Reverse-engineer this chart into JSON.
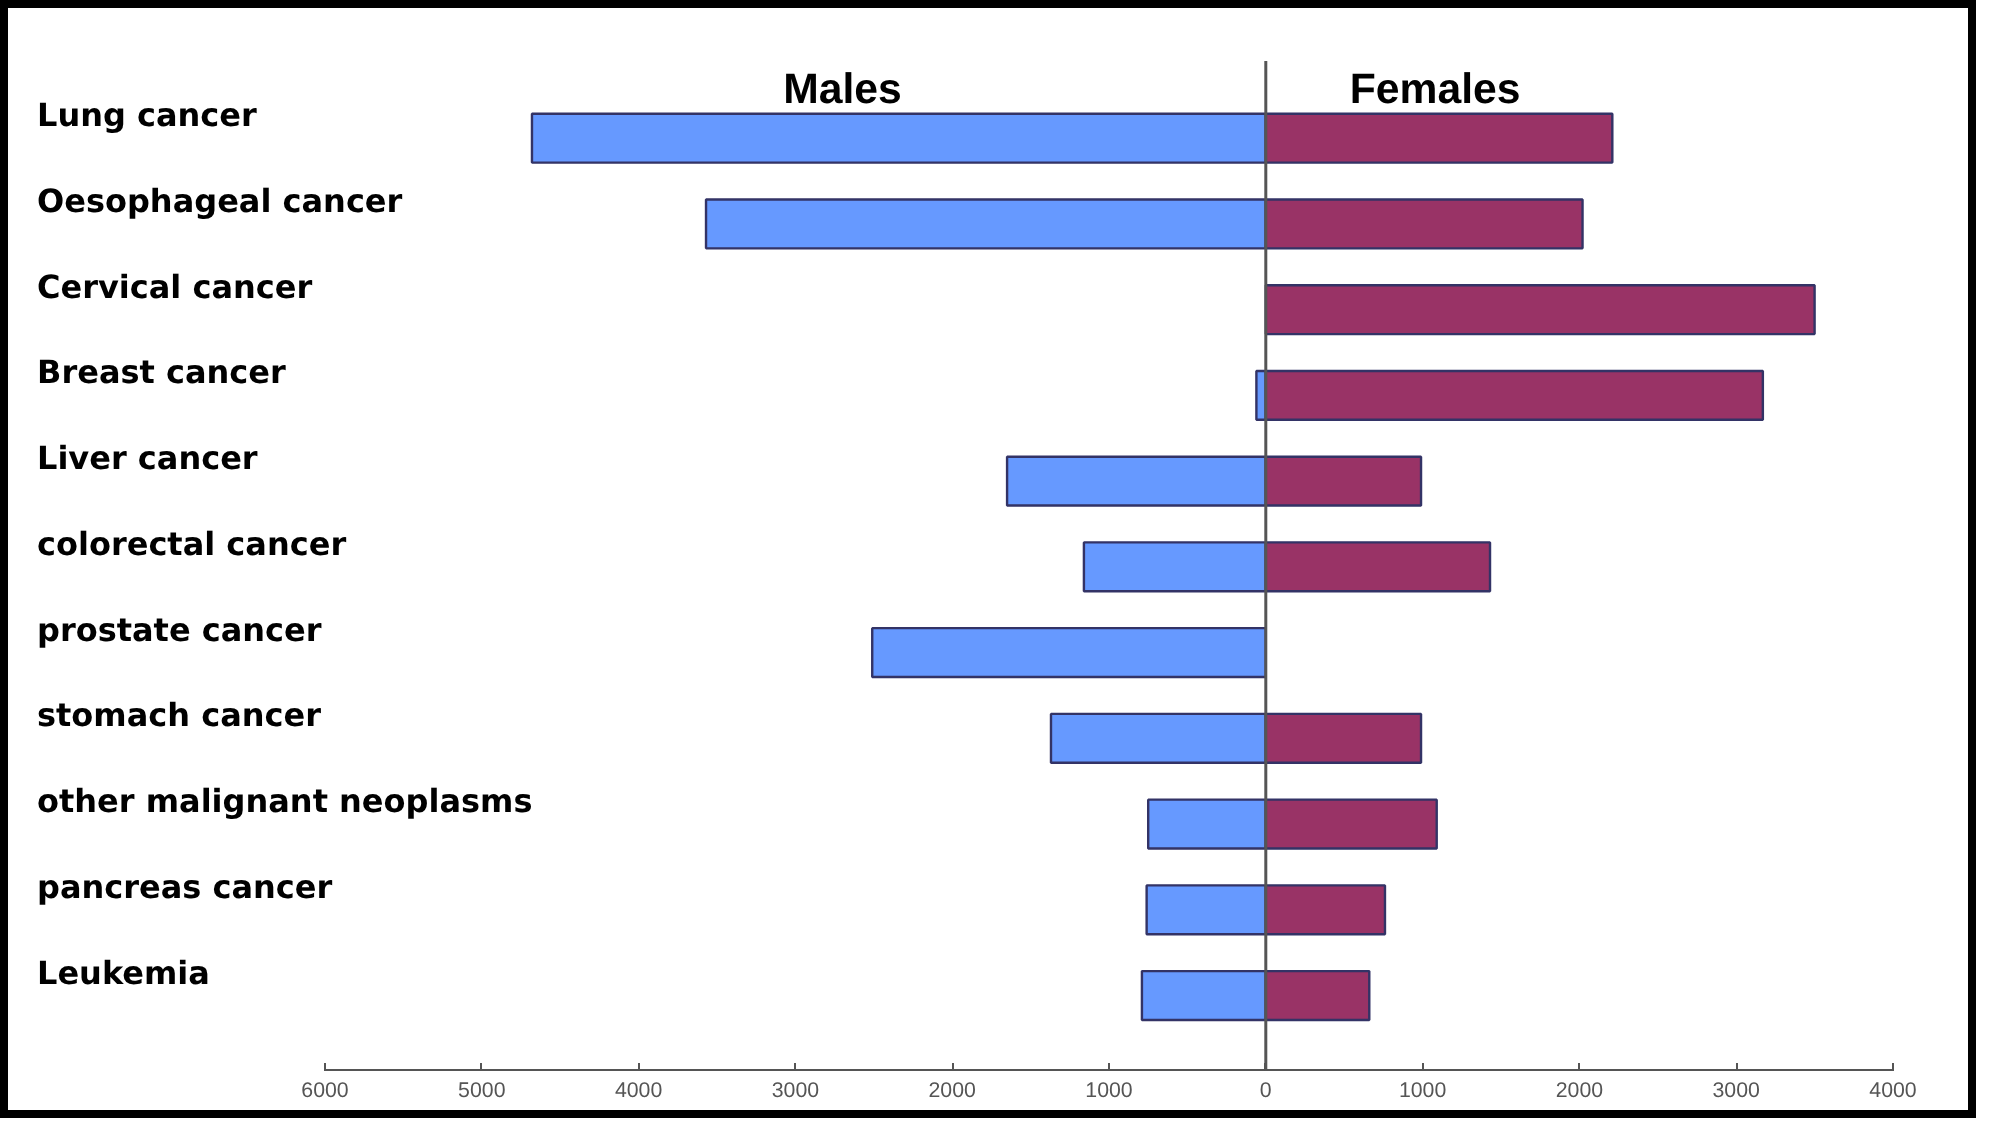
{
  "chart_data": {
    "type": "bar",
    "orientation": "horizontal",
    "stacked": true,
    "categories": [
      "Lung cancer",
      "Oesophageal cancer",
      "Cervical cancer",
      "Breast cancer",
      "Liver cancer",
      "colorectal cancer",
      "prostate cancer",
      "stomach cancer",
      "other malignant neoplasms",
      "pancreas cancer",
      "Leukemia"
    ],
    "series": [
      {
        "name": "Males",
        "color": "#6699ff",
        "values": [
          -4680,
          -3570,
          0,
          -60,
          -1650,
          -1160,
          -2510,
          -1370,
          -750,
          -760,
          -790
        ]
      },
      {
        "name": "Females",
        "color": "#993366",
        "values": [
          2210,
          2020,
          3500,
          3170,
          990,
          1430,
          0,
          990,
          1090,
          760,
          660
        ]
      }
    ],
    "xlim": [
      -6000,
      4000
    ],
    "xticks": [
      {
        "value": -6000,
        "label": "6000"
      },
      {
        "value": -5000,
        "label": "5000"
      },
      {
        "value": -4000,
        "label": "4000"
      },
      {
        "value": -3000,
        "label": "3000"
      },
      {
        "value": -2000,
        "label": "2000"
      },
      {
        "value": -1000,
        "label": "1000"
      },
      0,
      1000,
      2000,
      3000,
      4000
    ],
    "ref_lines": [
      {
        "axis": "x",
        "value": 0,
        "color": "#555555"
      }
    ],
    "grid": false
  }
}
